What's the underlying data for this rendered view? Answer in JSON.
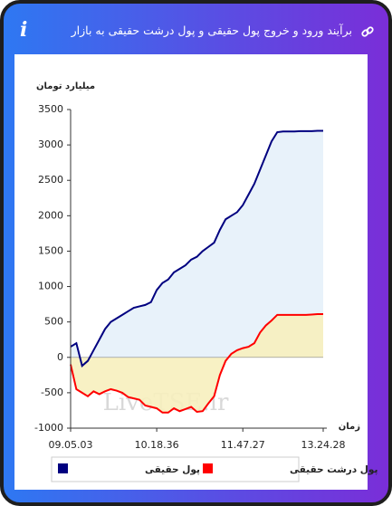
{
  "chart_data": {
    "type": "line",
    "title": "برآیند ورود و خروج پول حقیقی و پول درشت حقیقی به بازار",
    "y_label": "میلیارد تومان",
    "x_label": "زمان",
    "watermark": "LiveTSE.ir",
    "categories": [
      "09.05.03",
      null,
      null,
      null,
      null,
      null,
      null,
      null,
      null,
      null,
      null,
      null,
      null,
      null,
      null,
      "10.18.36",
      null,
      null,
      null,
      null,
      null,
      null,
      null,
      null,
      null,
      null,
      null,
      null,
      null,
      null,
      "11.47.27",
      null,
      null,
      null,
      null,
      null,
      null,
      null,
      null,
      null,
      null,
      null,
      null,
      null,
      "13.24.28"
    ],
    "series": [
      {
        "name": "پول حقیقی",
        "color": "#000080",
        "fill": "#e6f1fa",
        "values": [
          150,
          200,
          -120,
          -50,
          100,
          250,
          400,
          500,
          550,
          600,
          650,
          700,
          720,
          740,
          780,
          950,
          1050,
          1100,
          1200,
          1250,
          1300,
          1380,
          1420,
          1500,
          1560,
          1620,
          1800,
          1950,
          2000,
          2050,
          2150,
          2300,
          2450,
          2650,
          2850,
          3050,
          3180,
          3190,
          3190,
          3190,
          3195,
          3195,
          3195,
          3200,
          3200
        ]
      },
      {
        "name": "پول درشت حقیقی",
        "color": "#ff0000",
        "fill": "#f7efbe",
        "values": [
          -100,
          -450,
          -500,
          -550,
          -480,
          -520,
          -480,
          -450,
          -470,
          -500,
          -560,
          -580,
          -600,
          -680,
          -700,
          -720,
          -780,
          -780,
          -720,
          -760,
          -730,
          -700,
          -770,
          -760,
          -650,
          -550,
          -250,
          -50,
          50,
          100,
          130,
          150,
          200,
          350,
          450,
          520,
          600,
          600,
          600,
          600,
          600,
          600,
          605,
          610,
          610
        ]
      }
    ],
    "ylim": [
      -1000,
      3500
    ],
    "yticks": [
      -1000,
      -500,
      0,
      500,
      1000,
      1500,
      2000,
      2500,
      3000,
      3500
    ],
    "grid": false
  }
}
